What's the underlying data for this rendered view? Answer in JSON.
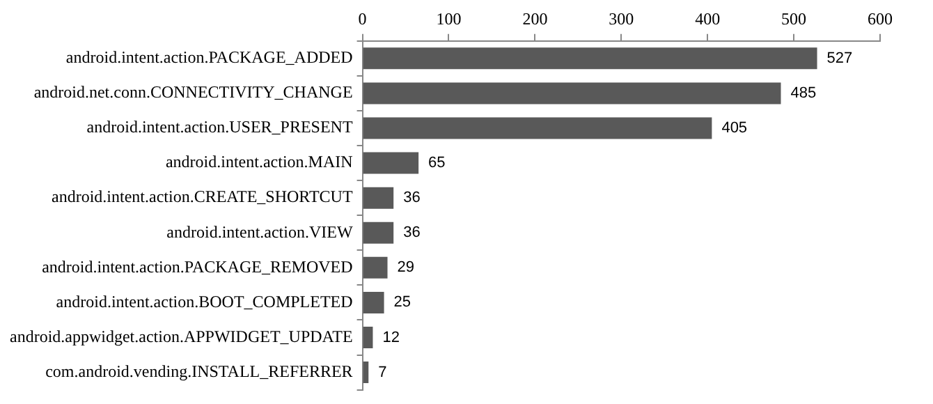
{
  "chart_data": {
    "type": "bar",
    "orientation": "horizontal",
    "categories": [
      "android.intent.action.PACKAGE_ADDED",
      "android.net.conn.CONNECTIVITY_CHANGE",
      "android.intent.action.USER_PRESENT",
      "android.intent.action.MAIN",
      "android.intent.action.CREATE_SHORTCUT",
      "android.intent.action.VIEW",
      "android.intent.action.PACKAGE_REMOVED",
      "android.intent.action.BOOT_COMPLETED",
      "android.appwidget.action.APPWIDGET_UPDATE",
      "com.android.vending.INSTALL_REFERRER"
    ],
    "values": [
      527,
      485,
      405,
      65,
      36,
      36,
      29,
      25,
      12,
      7
    ],
    "color": "#595959",
    "xlim": [
      0,
      600
    ],
    "xticks": [
      0,
      100,
      200,
      300,
      400,
      500,
      600
    ],
    "grid": false,
    "legend": false,
    "data_labels": true
  }
}
